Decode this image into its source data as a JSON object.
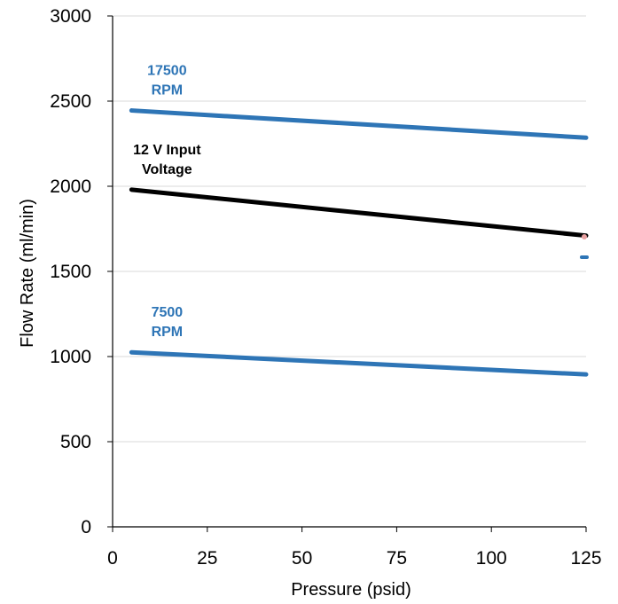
{
  "chart_data": {
    "type": "line",
    "xlabel": "Pressure (psid)",
    "ylabel": "Flow Rate (ml/min)",
    "xlim": [
      0,
      125
    ],
    "ylim": [
      0,
      3000
    ],
    "x_ticks": [
      0,
      25,
      50,
      75,
      100,
      125
    ],
    "y_ticks": [
      0,
      500,
      1000,
      1500,
      2000,
      2500,
      3000
    ],
    "grid": "horizontal",
    "series": [
      {
        "name": "17500 RPM",
        "color": "#2E75B6",
        "x": [
          5,
          125
        ],
        "y": [
          2445,
          2285
        ]
      },
      {
        "name": "12 V Input Voltage",
        "color": "#000000",
        "x": [
          5,
          125
        ],
        "y": [
          1980,
          1710
        ]
      },
      {
        "name": "7500 RPM",
        "color": "#2E75B6",
        "x": [
          5,
          125
        ],
        "y": [
          1025,
          895
        ]
      }
    ],
    "annotations": [
      {
        "lines": [
          "17500",
          "RPM"
        ],
        "color": "#2E75B6",
        "series": 0
      },
      {
        "lines": [
          "12 V Input",
          "Voltage"
        ],
        "color": "#000000",
        "series": 1
      },
      {
        "lines": [
          "7500",
          "RPM"
        ],
        "color": "#2E75B6",
        "series": 2
      }
    ]
  }
}
